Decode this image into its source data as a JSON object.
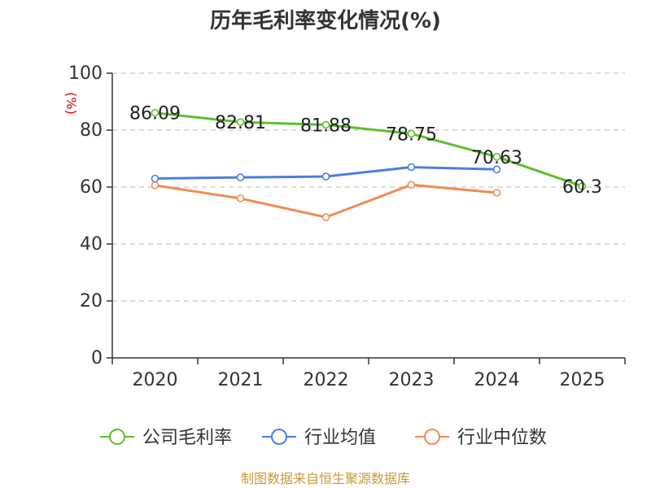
{
  "chart_data": {
    "type": "line",
    "title": "历年毛利率变化情况(%)",
    "ylabel": "(%)",
    "categories": [
      "2020",
      "2021",
      "2022",
      "2023",
      "2024",
      "2025"
    ],
    "ylim": [
      0,
      100
    ],
    "yticks": [
      0,
      20,
      40,
      60,
      80,
      100
    ],
    "grid": true,
    "legend_position": "bottom",
    "series": [
      {
        "name": "公司毛利率",
        "color": "#5cc02f",
        "values": [
          86.09,
          82.81,
          81.88,
          78.75,
          70.63,
          60.3
        ],
        "labels": [
          "86.09",
          "82.81",
          "81.88",
          "78.75",
          "70.63",
          "60.3"
        ]
      },
      {
        "name": "行业均值",
        "color": "#4a7fe0",
        "values": [
          63.0,
          63.4,
          63.7,
          67.0,
          66.2,
          null
        ]
      },
      {
        "name": "行业中位数",
        "color": "#f28b54",
        "values": [
          60.6,
          56.0,
          49.4,
          60.8,
          58.0,
          null
        ]
      }
    ]
  },
  "source": "制图数据来自恒生聚源数据库"
}
